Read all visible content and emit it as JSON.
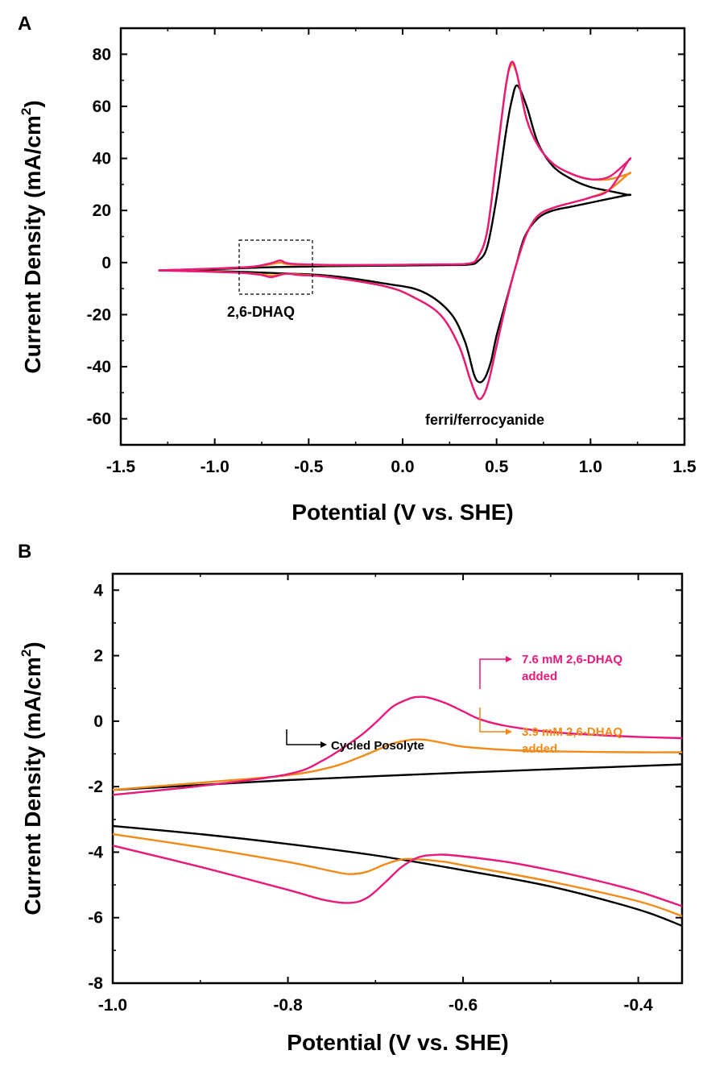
{
  "chart_data": [
    {
      "panel": "A",
      "type": "line",
      "xlabel": "Potential (V vs. SHE)",
      "ylabel": "Current Density (mA/cm",
      "ylabel_sup": "2",
      "ylabel_close": ")",
      "xlim": [
        -1.5,
        1.5
      ],
      "ylim": [
        -70,
        90
      ],
      "xticks": [
        "-1.5",
        "-1.0",
        "-0.5",
        "0.0",
        "0.5",
        "1.0",
        "1.5"
      ],
      "yticks": [
        "-60",
        "-40",
        "-20",
        "0",
        "20",
        "40",
        "60",
        "80"
      ],
      "annotations": [
        "2,6-DHAQ",
        "ferri/ferrocyanide"
      ],
      "box_region": {
        "x": [
          -0.85,
          -0.48
        ],
        "y": [
          -12,
          9
        ]
      },
      "series": [
        {
          "color": "#000000",
          "x": [
            -1.3,
            -1.0,
            -0.7,
            -0.4,
            -0.1,
            0.2,
            0.35,
            0.4,
            0.45,
            0.5,
            0.55,
            0.58,
            0.61,
            0.66,
            0.72,
            0.8,
            0.9,
            1.0,
            1.1,
            1.2,
            1.2,
            1.1,
            1.0,
            0.9,
            0.8,
            0.72,
            0.65,
            0.6,
            0.55,
            0.5,
            0.47,
            0.44,
            0.41,
            0.38,
            0.33,
            0.25,
            0.1,
            -0.1,
            -0.4,
            -0.7,
            -1.0,
            -1.3
          ],
          "y": [
            -3,
            -2.5,
            -1.8,
            -1.4,
            -1.2,
            -1,
            -0.8,
            0.5,
            6,
            25,
            50,
            62,
            68,
            60,
            46,
            37,
            32,
            29,
            27.5,
            26,
            26,
            24.5,
            23,
            21.5,
            20,
            17,
            10,
            -2,
            -15,
            -28,
            -38,
            -44,
            -46,
            -43,
            -30,
            -19,
            -11,
            -8,
            -5,
            -4,
            -3.3,
            -3
          ]
        },
        {
          "color": "#f28a17",
          "x": [
            -1.3,
            -1.0,
            -0.8,
            -0.7,
            -0.65,
            -0.6,
            -0.4,
            -0.1,
            0.2,
            0.35,
            0.4,
            0.45,
            0.5,
            0.55,
            0.58,
            0.61,
            0.66,
            0.72,
            0.8,
            0.9,
            1.0,
            1.1,
            1.2,
            1.2,
            1.1,
            1.0,
            0.9,
            0.8,
            0.72,
            0.66,
            0.6,
            0.55,
            0.5,
            0.46,
            0.43,
            0.4,
            0.36,
            0.3,
            0.2,
            0.05,
            -0.1,
            -0.4,
            -0.55,
            -0.62,
            -0.7,
            -0.75,
            -0.85,
            -1.0,
            -1.3
          ],
          "y": [
            -3,
            -2.3,
            -1.6,
            -0.6,
            0,
            -0.7,
            -1.0,
            -0.9,
            -0.7,
            -0.4,
            2,
            12,
            40,
            68,
            76,
            72,
            55,
            45,
            38,
            34,
            32,
            32,
            34,
            34,
            28,
            25,
            23,
            21,
            18,
            11,
            -2,
            -16,
            -32,
            -45,
            -51,
            -52,
            -45,
            -32,
            -20,
            -13,
            -9,
            -5.5,
            -4.6,
            -4.3,
            -5.0,
            -4.5,
            -4.0,
            -3.5,
            -3
          ]
        },
        {
          "color": "#e8197a",
          "x": [
            -1.3,
            -1.0,
            -0.8,
            -0.7,
            -0.65,
            -0.6,
            -0.4,
            -0.1,
            0.2,
            0.35,
            0.4,
            0.45,
            0.5,
            0.55,
            0.58,
            0.61,
            0.66,
            0.72,
            0.8,
            0.9,
            1.0,
            1.1,
            1.2,
            1.2,
            1.1,
            1.0,
            0.9,
            0.8,
            0.72,
            0.66,
            0.6,
            0.55,
            0.5,
            0.46,
            0.43,
            0.4,
            0.36,
            0.3,
            0.2,
            0.05,
            -0.1,
            -0.4,
            -0.55,
            -0.62,
            -0.7,
            -0.75,
            -0.85,
            -1.0,
            -1.3
          ],
          "y": [
            -3,
            -2.3,
            -1.6,
            -0.2,
            0.8,
            -0.4,
            -0.9,
            -0.9,
            -0.7,
            -0.4,
            2,
            12,
            40,
            68,
            77,
            72,
            55,
            45,
            38,
            34,
            32,
            33,
            39,
            39,
            28,
            25,
            23,
            21,
            18,
            11,
            -2,
            -16,
            -32,
            -45,
            -51,
            -52,
            -45,
            -32,
            -20,
            -13,
            -9,
            -5.5,
            -4.8,
            -4.3,
            -5.6,
            -4.8,
            -4.0,
            -3.6,
            -3
          ]
        }
      ]
    },
    {
      "panel": "B",
      "type": "line",
      "xlabel": "Potential (V vs. SHE)",
      "ylabel": "Current Density (mA/cm",
      "ylabel_sup": "2",
      "ylabel_close": ")",
      "xlim": [
        -1.0,
        -0.35
      ],
      "ylim": [
        -8,
        4.5
      ],
      "xticks": [
        "-1.0",
        "-0.8",
        "-0.6",
        "-0.4"
      ],
      "yticks": [
        "-8",
        "-6",
        "-4",
        "-2",
        "0",
        "2",
        "4"
      ],
      "annotations": [
        "Cycled Posolyte",
        "3.9 mM 2,6-DHAQ",
        "added",
        "7.6 mM 2,6-DHAQ",
        "added"
      ],
      "series": [
        {
          "color": "#000000",
          "x": [
            -1.0,
            -0.9,
            -0.8,
            -0.7,
            -0.6,
            -0.5,
            -0.4,
            -0.35
          ],
          "y": [
            -2.1,
            -1.95,
            -1.8,
            -1.68,
            -1.57,
            -1.47,
            -1.37,
            -1.32
          ]
        },
        {
          "color": "#000000",
          "x": [
            -1.0,
            -0.9,
            -0.8,
            -0.7,
            -0.6,
            -0.5,
            -0.4,
            -0.35
          ],
          "y": [
            -3.2,
            -3.45,
            -3.75,
            -4.1,
            -4.55,
            -5.05,
            -5.75,
            -6.25
          ]
        },
        {
          "color": "#f28a17",
          "x": [
            -1.0,
            -0.9,
            -0.8,
            -0.75,
            -0.72,
            -0.7,
            -0.68,
            -0.66,
            -0.65,
            -0.64,
            -0.62,
            -0.6,
            -0.55,
            -0.5,
            -0.45,
            -0.4,
            -0.35
          ],
          "y": [
            -2.1,
            -1.88,
            -1.65,
            -1.4,
            -1.12,
            -0.9,
            -0.68,
            -0.57,
            -0.56,
            -0.58,
            -0.68,
            -0.78,
            -0.88,
            -0.92,
            -0.94,
            -0.95,
            -0.95
          ]
        },
        {
          "color": "#f28a17",
          "x": [
            -1.0,
            -0.9,
            -0.8,
            -0.75,
            -0.73,
            -0.71,
            -0.69,
            -0.67,
            -0.65,
            -0.62,
            -0.6,
            -0.5,
            -0.4,
            -0.35
          ],
          "y": [
            -3.45,
            -3.85,
            -4.3,
            -4.58,
            -4.67,
            -4.6,
            -4.38,
            -4.22,
            -4.22,
            -4.3,
            -4.4,
            -4.9,
            -5.5,
            -5.95
          ]
        },
        {
          "color": "#e8197a",
          "x": [
            -1.0,
            -0.9,
            -0.8,
            -0.76,
            -0.72,
            -0.7,
            -0.68,
            -0.66,
            -0.65,
            -0.64,
            -0.62,
            -0.6,
            -0.58,
            -0.55,
            -0.5,
            -0.45,
            -0.4,
            -0.35
          ],
          "y": [
            -2.25,
            -1.98,
            -1.62,
            -1.2,
            -0.5,
            -0.05,
            0.45,
            0.7,
            0.74,
            0.72,
            0.55,
            0.3,
            0.05,
            -0.15,
            -0.33,
            -0.42,
            -0.48,
            -0.52
          ]
        },
        {
          "color": "#e8197a",
          "x": [
            -1.0,
            -0.9,
            -0.8,
            -0.76,
            -0.73,
            -0.71,
            -0.69,
            -0.67,
            -0.65,
            -0.63,
            -0.61,
            -0.55,
            -0.5,
            -0.45,
            -0.4,
            -0.35
          ],
          "y": [
            -3.8,
            -4.45,
            -5.15,
            -5.45,
            -5.55,
            -5.4,
            -4.95,
            -4.45,
            -4.15,
            -4.08,
            -4.1,
            -4.3,
            -4.55,
            -4.85,
            -5.2,
            -5.65
          ]
        }
      ]
    }
  ]
}
